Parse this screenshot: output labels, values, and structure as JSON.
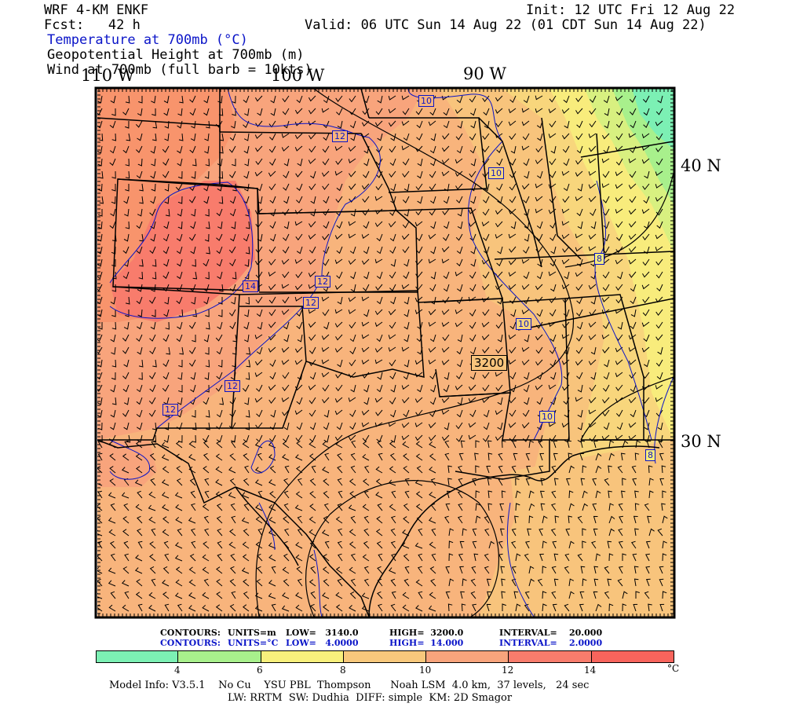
{
  "header": {
    "model": "WRF 4-KM ENKF",
    "forecast": "Fcst:   42 h",
    "init": "Init: 12 UTC Fri 12 Aug 22",
    "valid": "Valid: 06 UTC Sun 14 Aug 22 (01 CDT Sun 14 Aug 22)",
    "field_temp": "Temperature at 700mb (°C)",
    "field_height": "Geopotential Height at 700mb (m)",
    "field_wind": "Wind at 700mb (full barb = 10kts)"
  },
  "map": {
    "lon_labels": [
      "110 W",
      "100 W",
      "90 W"
    ],
    "lat_labels": [
      "40 N",
      "30 N"
    ],
    "temp_contour_labels": [
      "10",
      "12",
      "10",
      "12",
      "12",
      "14",
      "10",
      "12",
      "12",
      "10",
      "8",
      "8"
    ],
    "height_contour_label": "3200",
    "colors": {
      "cold": "#7cf0b4",
      "c6": "#a8f08c",
      "c8": "#f8f07c",
      "c10": "#f8c87c",
      "c12": "#f8a47c",
      "c14": "#f87c6c",
      "contour_blue": "#0a14c8"
    }
  },
  "contours_info": {
    "black_prefix": "CONTOURS:",
    "black_units": "UNITS=m",
    "black_low": "LOW=   3140.0",
    "black_high": "HIGH=  3200.0",
    "black_interval": "INTERVAL=    20.000",
    "blue_prefix": "CONTOURS:",
    "blue_units": "UNITS=°C",
    "blue_low": "LOW=   4.0000",
    "blue_high": "HIGH=  14.000",
    "blue_interval": "INTERVAL=    2.0000"
  },
  "colorbar": {
    "labels": [
      "4",
      "6",
      "8",
      "10",
      "12",
      "14"
    ],
    "unit": "°C",
    "colors": [
      "#7cf0b4",
      "#a8f08c",
      "#f8f07c",
      "#f8c87c",
      "#f8a47c",
      "#f87c6c",
      "#f8645c"
    ]
  },
  "footer": {
    "line1": "Model Info: V3.5.1    No Cu    YSU PBL  Thompson      Noah LSM  4.0 km,  37 levels,   24 sec",
    "line2": "LW: RRTM  SW: Dudhia  DIFF: simple  KM: 2D Smagor"
  }
}
